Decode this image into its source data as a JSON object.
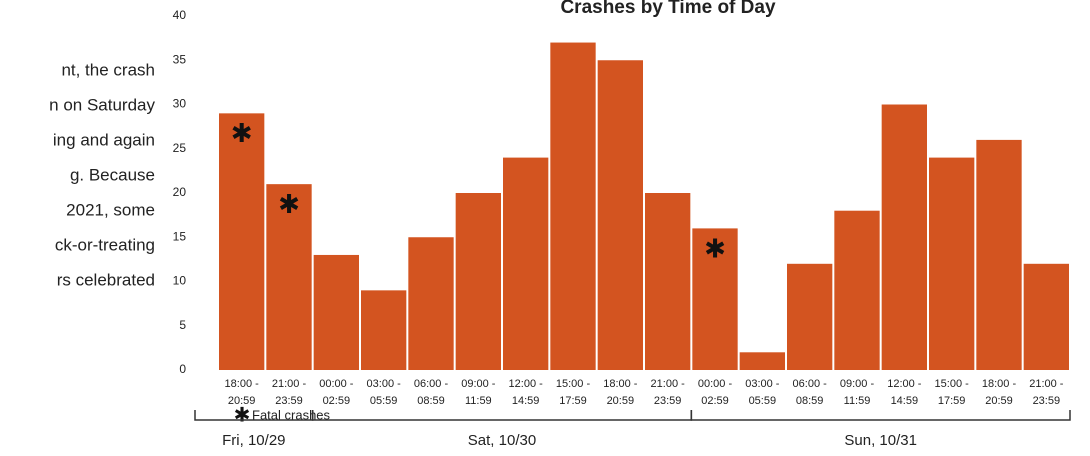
{
  "text_lines": [
    "nt, the crash",
    "n on Saturday",
    "ing and again",
    "g.    Because",
    "2021, some",
    "ck-or-treating",
    "rs celebrated"
  ],
  "chart_data": {
    "type": "bar",
    "title": "Crashes by Time of Day",
    "categories": [
      [
        "18:00 -",
        "20:59"
      ],
      [
        "21:00 -",
        "23:59"
      ],
      [
        "00:00 -",
        "02:59"
      ],
      [
        "03:00 -",
        "05:59"
      ],
      [
        "06:00 -",
        "08:59"
      ],
      [
        "09:00 -",
        "11:59"
      ],
      [
        "12:00 -",
        "14:59"
      ],
      [
        "15:00 -",
        "17:59"
      ],
      [
        "18:00 -",
        "20:59"
      ],
      [
        "21:00 -",
        "23:59"
      ],
      [
        "00:00 -",
        "02:59"
      ],
      [
        "03:00 -",
        "05:59"
      ],
      [
        "06:00 -",
        "08:59"
      ],
      [
        "09:00 -",
        "11:59"
      ],
      [
        "12:00 -",
        "14:59"
      ],
      [
        "15:00 -",
        "17:59"
      ],
      [
        "18:00 -",
        "20:59"
      ],
      [
        "21:00 -",
        "23:59"
      ]
    ],
    "values": [
      29,
      21,
      13,
      9,
      15,
      20,
      24,
      37,
      35,
      20,
      16,
      2,
      12,
      18,
      30,
      24,
      26,
      12
    ],
    "color": "#d35420",
    "ylim": [
      0,
      40
    ],
    "yticks": [
      0,
      5,
      10,
      15,
      20,
      25,
      30,
      35,
      40
    ],
    "grid": false,
    "fatal": {
      "marker": "✱",
      "label": "Fatal crashes",
      "indices": [
        0,
        1,
        10
      ]
    },
    "groups": [
      {
        "label": "Fri, 10/29",
        "start": 0,
        "end": 1
      },
      {
        "label": "Sat, 10/30",
        "start": 2,
        "end": 9
      },
      {
        "label": "Sun, 10/31",
        "start": 10,
        "end": 17
      }
    ]
  }
}
